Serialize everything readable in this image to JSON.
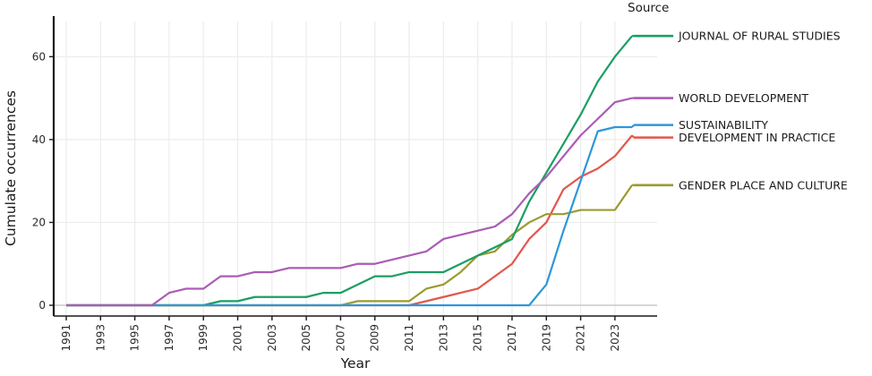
{
  "chart_data": {
    "type": "line",
    "title": "",
    "xlabel": "Year",
    "ylabel": "Cumulate occurrences",
    "legend_title": "Source",
    "legend_position": "right",
    "grid": true,
    "x": [
      1991,
      1992,
      1993,
      1994,
      1995,
      1996,
      1997,
      1998,
      1999,
      2000,
      2001,
      2002,
      2003,
      2004,
      2005,
      2006,
      2007,
      2008,
      2009,
      2010,
      2011,
      2012,
      2013,
      2014,
      2015,
      2016,
      2017,
      2018,
      2019,
      2020,
      2021,
      2022,
      2023,
      2024
    ],
    "x_ticks": [
      1991,
      1993,
      1995,
      1997,
      1999,
      2001,
      2003,
      2005,
      2007,
      2009,
      2011,
      2013,
      2015,
      2017,
      2019,
      2021,
      2023
    ],
    "y_ticks": [
      0,
      20,
      40,
      60
    ],
    "ylim": [
      0,
      65
    ],
    "series": [
      {
        "name": "JOURNAL OF RURAL STUDIES",
        "color": "#1b9e64",
        "values": [
          0,
          0,
          0,
          0,
          0,
          0,
          0,
          0,
          0,
          1,
          1,
          2,
          2,
          2,
          2,
          3,
          3,
          5,
          7,
          7,
          8,
          8,
          8,
          10,
          12,
          14,
          16,
          25,
          32,
          39,
          46,
          54,
          60,
          65
        ]
      },
      {
        "name": "WORLD DEVELOPMENT",
        "color": "#aa5cb4",
        "values": [
          0,
          0,
          0,
          0,
          0,
          0,
          3,
          4,
          4,
          7,
          7,
          8,
          8,
          9,
          9,
          9,
          9,
          10,
          10,
          11,
          12,
          13,
          16,
          17,
          18,
          19,
          22,
          27,
          31,
          36,
          41,
          45,
          49,
          50
        ]
      },
      {
        "name": "SUSTAINABILITY",
        "color": "#2e97d8",
        "values": [
          0,
          0,
          0,
          0,
          0,
          0,
          0,
          0,
          0,
          0,
          0,
          0,
          0,
          0,
          0,
          0,
          0,
          0,
          0,
          0,
          0,
          0,
          0,
          0,
          0,
          0,
          0,
          0,
          5,
          18,
          30,
          42,
          43,
          43
        ]
      },
      {
        "name": "DEVELOPMENT IN PRACTICE",
        "color": "#e2574c",
        "values": [
          0,
          0,
          0,
          0,
          0,
          0,
          0,
          0,
          0,
          0,
          0,
          0,
          0,
          0,
          0,
          0,
          0,
          0,
          0,
          0,
          0,
          1,
          2,
          3,
          4,
          7,
          10,
          16,
          20,
          28,
          31,
          33,
          36,
          41
        ]
      },
      {
        "name": "GENDER PLACE AND CULTURE",
        "color": "#9b9a2f",
        "values": [
          0,
          0,
          0,
          0,
          0,
          0,
          0,
          0,
          0,
          0,
          0,
          0,
          0,
          0,
          0,
          0,
          0,
          1,
          1,
          1,
          1,
          4,
          5,
          8,
          12,
          13,
          17,
          20,
          22,
          22,
          23,
          23,
          23,
          29
        ]
      }
    ]
  },
  "colors": {
    "grid": "#ececec",
    "zero_line": "#c9c9c9",
    "axis_line": "#1a1a1a",
    "tick_text": "#2b2b2b",
    "legend_text": "#1a1a1a",
    "background": "#ffffff"
  }
}
